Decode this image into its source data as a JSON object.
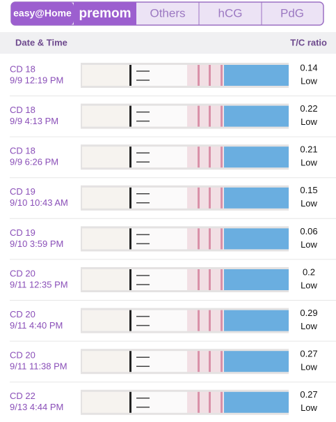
{
  "tabs": {
    "brand": "easy@Home",
    "items": [
      "premom",
      "Others",
      "hCG",
      "PdG"
    ]
  },
  "header": {
    "date_time": "Date & Time",
    "ratio": "T/C ratio"
  },
  "rows": [
    {
      "cd": "CD 18",
      "datetime": "9/9 12:19 PM",
      "ratio": 0.14,
      "level": "Low"
    },
    {
      "cd": "CD 18",
      "datetime": "9/9 4:13 PM",
      "ratio": 0.22,
      "level": "Low"
    },
    {
      "cd": "CD 18",
      "datetime": "9/9 6:26 PM",
      "ratio": 0.21,
      "level": "Low"
    },
    {
      "cd": "CD 19",
      "datetime": "9/10 10:43 AM",
      "ratio": 0.15,
      "level": "Low"
    },
    {
      "cd": "CD 19",
      "datetime": "9/10 3:59 PM",
      "ratio": 0.06,
      "level": "Low"
    },
    {
      "cd": "CD 20",
      "datetime": "9/11 12:35 PM",
      "ratio": 0.2,
      "level": "Low"
    },
    {
      "cd": "CD 20",
      "datetime": "9/11 4:40 PM",
      "ratio": 0.29,
      "level": "Low"
    },
    {
      "cd": "CD 20",
      "datetime": "9/11 11:38 PM",
      "ratio": 0.27,
      "level": "Low"
    },
    {
      "cd": "CD 22",
      "datetime": "9/13 4:44 PM",
      "ratio": 0.27,
      "level": "Low"
    }
  ]
}
